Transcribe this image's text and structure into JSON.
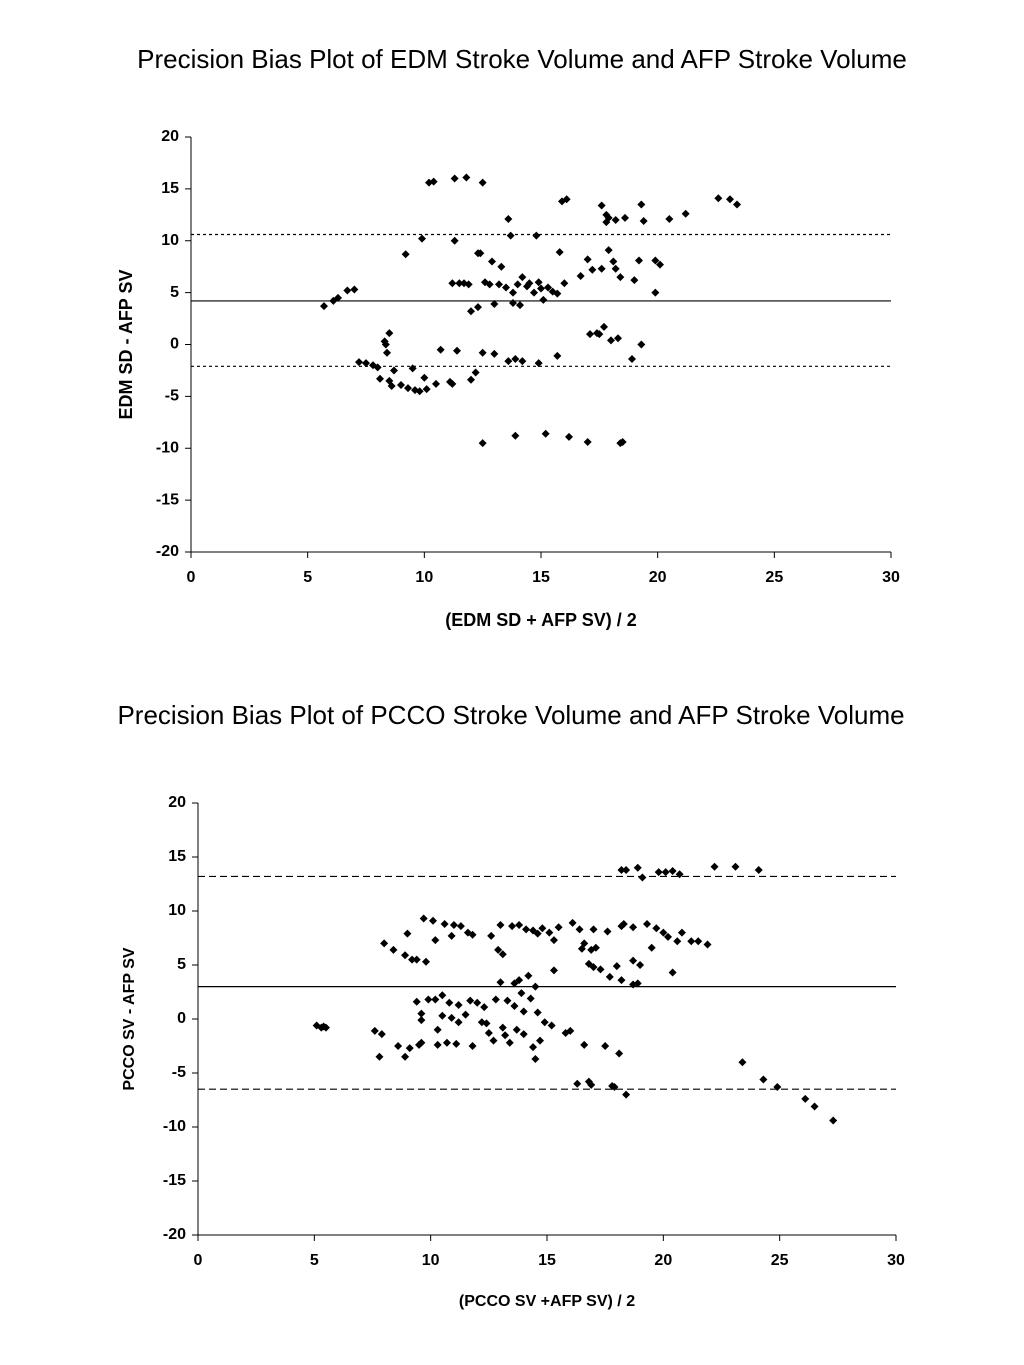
{
  "chart_data": [
    {
      "type": "scatter",
      "title": "Precision Bias Plot of EDM Stroke Volume and AFP Stroke Volume",
      "xlabel": "(EDM SD + AFP SV) / 2",
      "ylabel": "EDM SD - AFP SV",
      "color": "#000000",
      "xlim": [
        0,
        30
      ],
      "xticks": [
        0,
        5,
        10,
        15,
        20,
        25,
        30
      ],
      "ylim": [
        -20,
        20
      ],
      "yticks": [
        20,
        15,
        10,
        5,
        0,
        -5,
        -10,
        -15,
        -20
      ],
      "reference_lines": [
        {
          "value": 10.6,
          "style": "dotted"
        },
        {
          "value": 4.2,
          "style": "solid"
        },
        {
          "value": -2.1,
          "style": "dotted"
        }
      ],
      "x": [
        5.7,
        6.1,
        6.3,
        6.7,
        7.0,
        7.2,
        7.5,
        7.8,
        8.0,
        8.1,
        8.3,
        8.35,
        8.4,
        8.5,
        8.5,
        8.6,
        8.7,
        9.0,
        9.2,
        9.3,
        9.5,
        9.6,
        9.8,
        9.9,
        10.0,
        10.1,
        10.2,
        10.4,
        10.5,
        10.7,
        11.1,
        11.2,
        11.2,
        11.3,
        11.3,
        11.4,
        11.5,
        11.7,
        11.8,
        11.9,
        12.0,
        12.0,
        12.2,
        12.3,
        12.3,
        12.4,
        12.5,
        12.5,
        12.5,
        12.6,
        12.8,
        12.9,
        13.0,
        13.0,
        13.2,
        13.3,
        13.5,
        13.6,
        13.6,
        13.7,
        13.8,
        13.8,
        13.9,
        13.9,
        14.0,
        14.1,
        14.2,
        14.2,
        14.4,
        14.5,
        14.7,
        14.8,
        14.9,
        14.9,
        15.0,
        15.1,
        15.2,
        15.3,
        15.5,
        15.7,
        15.7,
        15.8,
        15.9,
        16.0,
        16.1,
        16.2,
        16.7,
        17.0,
        17.0,
        17.1,
        17.2,
        17.4,
        17.5,
        17.6,
        17.6,
        17.7,
        17.8,
        17.8,
        17.9,
        17.9,
        18.0,
        18.1,
        18.2,
        18.2,
        18.3,
        18.4,
        18.4,
        18.5,
        18.6,
        18.9,
        19.0,
        19.2,
        19.3,
        19.3,
        19.4,
        19.9,
        19.9,
        20.1,
        20.5,
        21.2,
        22.6,
        23.1,
        23.4
      ],
      "values": [
        3.7,
        4.2,
        4.5,
        5.2,
        5.3,
        -1.7,
        -1.8,
        -2.0,
        -2.2,
        -3.3,
        0.3,
        0.0,
        -0.8,
        1.1,
        -3.5,
        -4.0,
        -2.5,
        -3.9,
        8.7,
        -4.2,
        -2.3,
        -4.4,
        -4.5,
        10.2,
        -3.2,
        -4.3,
        15.6,
        15.7,
        -3.8,
        -0.5,
        -3.6,
        -3.8,
        5.9,
        16.0,
        10.0,
        -0.6,
        5.9,
        5.9,
        16.1,
        5.8,
        3.2,
        -3.4,
        -2.7,
        3.6,
        8.8,
        8.8,
        15.6,
        -9.5,
        -0.8,
        6.0,
        5.8,
        8.0,
        -0.9,
        3.9,
        5.8,
        7.5,
        5.5,
        12.1,
        -1.6,
        10.5,
        5.0,
        4.0,
        -1.4,
        -8.8,
        5.8,
        3.8,
        -1.6,
        6.5,
        5.6,
        5.9,
        5.0,
        10.5,
        -1.8,
        6.0,
        5.4,
        4.3,
        -8.6,
        5.5,
        5.1,
        4.9,
        -1.1,
        8.9,
        13.8,
        5.9,
        14.0,
        -8.9,
        6.6,
        8.2,
        -9.4,
        1.0,
        7.2,
        1.1,
        1.0,
        7.3,
        13.4,
        1.7,
        12.5,
        11.8,
        9.1,
        12.2,
        0.4,
        8.0,
        7.3,
        12.0,
        0.6,
        -9.5,
        6.5,
        -9.4,
        12.2,
        -1.4,
        6.2,
        8.1,
        13.5,
        0.0,
        11.9,
        8.1,
        5.0,
        7.7,
        12.1,
        12.6,
        14.1,
        14.0,
        13.5
      ]
    },
    {
      "type": "scatter",
      "title": "Precision Bias Plot of PCCO Stroke Volume and AFP Stroke Volume",
      "xlabel": "(PCCO SV +AFP SV) / 2",
      "ylabel": "PCCO SV - AFP SV",
      "color": "#000000",
      "xlim": [
        0,
        30
      ],
      "xticks": [
        0,
        5,
        10,
        15,
        20,
        25,
        30
      ],
      "ylim": [
        -20,
        20
      ],
      "yticks": [
        20,
        15,
        10,
        5,
        0,
        -5,
        -10,
        -15,
        -20
      ],
      "reference_lines": [
        {
          "value": 13.2,
          "style": "dashed"
        },
        {
          "value": 3.0,
          "style": "solid"
        },
        {
          "value": -6.5,
          "style": "dashed"
        }
      ],
      "x": [
        5.1,
        5.3,
        5.4,
        5.5,
        7.6,
        7.8,
        7.9,
        8.0,
        8.4,
        8.6,
        8.9,
        8.9,
        9.0,
        9.1,
        9.2,
        9.4,
        9.4,
        9.5,
        9.6,
        9.6,
        9.6,
        9.7,
        9.8,
        9.9,
        10.1,
        10.2,
        10.2,
        10.3,
        10.3,
        10.5,
        10.5,
        10.6,
        10.7,
        10.8,
        10.9,
        10.9,
        11.0,
        11.1,
        11.2,
        11.2,
        11.3,
        11.5,
        11.6,
        11.7,
        11.8,
        11.8,
        12.0,
        12.2,
        12.3,
        12.4,
        12.5,
        12.6,
        12.7,
        12.8,
        12.9,
        13.0,
        13.0,
        13.1,
        13.1,
        13.2,
        13.3,
        13.4,
        13.5,
        13.6,
        13.6,
        13.7,
        13.8,
        13.8,
        13.9,
        14.0,
        14.0,
        14.1,
        14.2,
        14.3,
        14.4,
        14.4,
        14.5,
        14.5,
        14.6,
        14.6,
        14.7,
        14.8,
        14.9,
        15.1,
        15.2,
        15.3,
        15.3,
        15.5,
        15.8,
        16.0,
        16.1,
        16.3,
        16.4,
        16.5,
        16.6,
        16.6,
        16.8,
        16.8,
        16.9,
        16.9,
        17.0,
        17.0,
        17.1,
        17.3,
        17.5,
        17.6,
        17.7,
        17.8,
        17.9,
        18.0,
        18.1,
        18.2,
        18.2,
        18.2,
        18.3,
        18.4,
        18.4,
        18.7,
        18.7,
        18.7,
        18.9,
        18.9,
        19.0,
        19.1,
        19.3,
        19.5,
        19.7,
        19.8,
        20.0,
        20.1,
        20.2,
        20.4,
        20.4,
        20.6,
        20.7,
        20.8,
        21.2,
        21.5,
        21.9,
        22.2,
        23.1,
        23.4,
        24.1,
        24.3,
        24.9,
        26.1,
        26.5,
        27.3
      ],
      "values": [
        -0.6,
        -0.8,
        -0.7,
        -0.8,
        -1.1,
        -3.5,
        -1.4,
        7.0,
        6.4,
        -2.5,
        -3.5,
        5.9,
        7.9,
        -2.7,
        5.5,
        5.5,
        1.6,
        -2.4,
        0.5,
        -2.2,
        -0.1,
        9.3,
        5.3,
        1.8,
        9.1,
        7.3,
        1.8,
        -2.4,
        -1.0,
        2.2,
        0.3,
        8.8,
        -2.2,
        1.5,
        7.7,
        0.1,
        8.7,
        -2.3,
        1.3,
        -0.3,
        8.6,
        0.4,
        8.0,
        1.7,
        -2.5,
        7.8,
        1.5,
        -0.3,
        1.1,
        -0.4,
        -1.3,
        7.7,
        -2.0,
        1.8,
        6.4,
        8.7,
        3.4,
        6.0,
        -0.8,
        -1.5,
        1.7,
        -2.2,
        8.6,
        3.3,
        1.2,
        -1.0,
        3.6,
        8.7,
        2.4,
        0.7,
        -1.4,
        8.3,
        4.0,
        1.9,
        8.2,
        -2.6,
        -3.7,
        3.0,
        7.9,
        0.6,
        -2.0,
        8.4,
        -0.3,
        8.0,
        -0.6,
        4.5,
        7.3,
        8.5,
        -1.3,
        -1.1,
        8.9,
        -6.0,
        8.3,
        6.5,
        -2.4,
        7.0,
        5.1,
        -5.8,
        6.4,
        -6.1,
        4.8,
        8.3,
        6.6,
        4.6,
        -2.5,
        8.1,
        3.9,
        -6.2,
        -6.3,
        4.9,
        -3.2,
        13.8,
        3.6,
        8.6,
        8.8,
        13.8,
        -7.0,
        8.5,
        5.4,
        3.2,
        14.0,
        3.3,
        5.0,
        13.1,
        8.8,
        6.6,
        8.4,
        13.6,
        8.0,
        13.6,
        7.6,
        13.7,
        4.3,
        7.2,
        13.4,
        8.0,
        7.2,
        7.2,
        6.9,
        14.1,
        14.1,
        -4.0,
        13.8,
        -5.6,
        -6.3,
        -7.4,
        -8.1,
        -9.4
      ]
    }
  ]
}
